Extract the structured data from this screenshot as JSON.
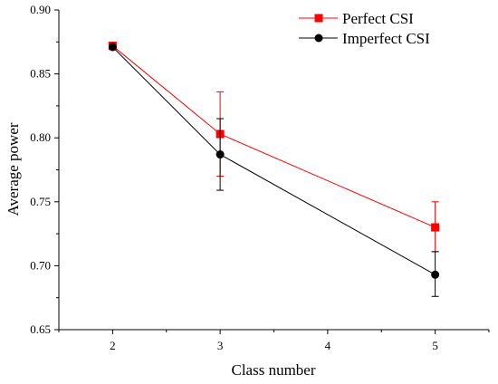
{
  "chart_data": {
    "type": "line",
    "xlabel": "Class number",
    "ylabel": "Average power",
    "x": [
      2,
      3,
      5
    ],
    "xlim": [
      1.5,
      5.5
    ],
    "ylim": [
      0.65,
      0.9
    ],
    "xticks": [
      "2",
      "3",
      "4",
      "5"
    ],
    "yticks": [
      "0.65",
      "0.70",
      "0.75",
      "0.80",
      "0.85",
      "0.90"
    ],
    "legend_position": "top-right",
    "grid": false,
    "series": [
      {
        "name": "Perfect CSI",
        "color": "#ff0000",
        "marker": "square",
        "values": [
          0.872,
          0.803,
          0.73
        ],
        "err_low": [
          0.871,
          0.77,
          0.711
        ],
        "err_high": [
          0.873,
          0.836,
          0.75
        ]
      },
      {
        "name": "Imperfect CSI",
        "color": "#000000",
        "marker": "circle",
        "values": [
          0.871,
          0.787,
          0.693
        ],
        "err_low": [
          0.87,
          0.759,
          0.676
        ],
        "err_high": [
          0.872,
          0.815,
          0.711
        ]
      }
    ]
  }
}
